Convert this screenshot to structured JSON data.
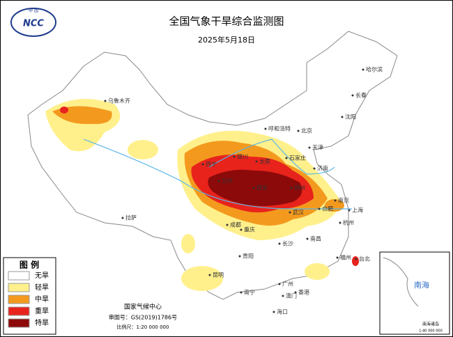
{
  "header": {
    "logo_text": "中 国",
    "logo_abbr": "NCC",
    "title": "全国气象干旱综合监测图",
    "date": "2025年5月18日"
  },
  "legend": {
    "title": "图 例",
    "items": [
      {
        "label": "无旱",
        "color": "#ffffff"
      },
      {
        "label": "轻旱",
        "color": "#fff08c"
      },
      {
        "label": "中旱",
        "color": "#f39a1e"
      },
      {
        "label": "重旱",
        "color": "#e8231c"
      },
      {
        "label": "特旱",
        "color": "#8c0a0a"
      }
    ]
  },
  "cities": [
    "哈尔滨",
    "长春",
    "沈阳",
    "乌鲁木齐",
    "呼和浩特",
    "北京",
    "天津",
    "石家庄",
    "银川",
    "西宁",
    "太原",
    "济南",
    "兰州",
    "西安",
    "郑州",
    "合肥",
    "南京",
    "上海",
    "武汉",
    "成都",
    "重庆",
    "杭州",
    "拉萨",
    "贵阳",
    "长沙",
    "南昌",
    "福州",
    "台北",
    "昆明",
    "南宁",
    "广州",
    "香港",
    "澳门",
    "海口"
  ],
  "footer": {
    "agency": "国家气候中心",
    "approval": "审图号：GS(2019)1786号",
    "scale": "比例尺：1:20 000 000"
  },
  "inset": {
    "sea": "南海",
    "islands": "南海诸岛",
    "scale": "1:40 000 000"
  }
}
